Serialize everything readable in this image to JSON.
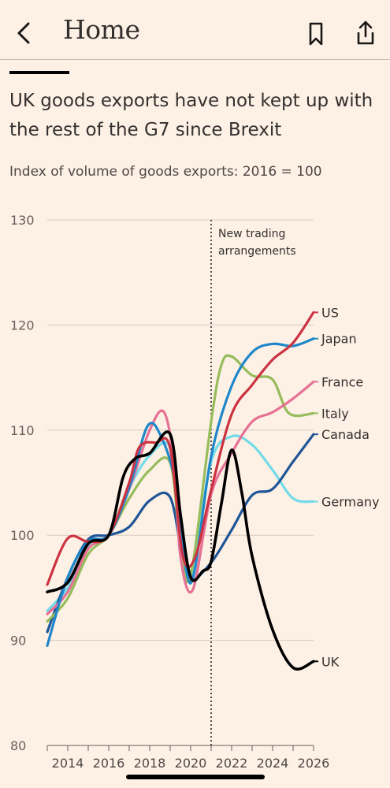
{
  "nav": {
    "back_icon": "chevron-left-icon",
    "title": "Home",
    "bookmark_icon": "bookmark-icon",
    "share_icon": "share-icon"
  },
  "article": {
    "headline": "UK goods exports have not kept up with the rest of the G7 since Brexit",
    "subtitle": "Index of volume of goods exports: 2016 = 100"
  },
  "chart_data": {
    "type": "line",
    "title": "UK goods exports have not kept up with the rest of the G7 since Brexit",
    "subtitle": "Index of volume of goods exports: 2016 = 100",
    "xlabel": "",
    "ylabel": "",
    "xlim": [
      2013,
      2026
    ],
    "ylim": [
      80,
      130
    ],
    "x_ticks": [
      2014,
      2016,
      2018,
      2020,
      2022,
      2024,
      2026
    ],
    "y_ticks": [
      80,
      90,
      100,
      110,
      120,
      130
    ],
    "grid": "horizontal",
    "legend": "direct labels at line ends (right)",
    "annotation": {
      "x": 2021,
      "text_line1": "New trading",
      "text_line2": "arrangements"
    },
    "series": [
      {
        "name": "US",
        "color": "#cc3341",
        "points": [
          [
            2013,
            95.3
          ],
          [
            2014,
            99.7
          ],
          [
            2015,
            99.4
          ],
          [
            2016,
            100
          ],
          [
            2017,
            105
          ],
          [
            2017.5,
            108.4
          ],
          [
            2018.3,
            108.8
          ],
          [
            2019,
            108.3
          ],
          [
            2019.6,
            98.2
          ],
          [
            2020.2,
            97.8
          ],
          [
            2021,
            104.3
          ],
          [
            2022,
            111.5
          ],
          [
            2023,
            114.3
          ],
          [
            2024,
            116.7
          ],
          [
            2025,
            118.3
          ],
          [
            2026,
            121.2
          ]
        ]
      },
      {
        "name": "Japan",
        "color": "#1f87c9",
        "points": [
          [
            2013,
            89.5
          ],
          [
            2014,
            96
          ],
          [
            2015,
            99.4
          ],
          [
            2016,
            100
          ],
          [
            2017,
            104.5
          ],
          [
            2017.9,
            110.4
          ],
          [
            2018.6,
            109.2
          ],
          [
            2019.3,
            104.6
          ],
          [
            2019.8,
            96.5
          ],
          [
            2020.2,
            96.7
          ],
          [
            2021,
            107.5
          ],
          [
            2022,
            114.2
          ],
          [
            2023,
            117.4
          ],
          [
            2024,
            118.2
          ],
          [
            2025,
            118
          ],
          [
            2026,
            118.7
          ]
        ]
      },
      {
        "name": "France",
        "color": "#e57195",
        "points": [
          [
            2013,
            92.5
          ],
          [
            2014,
            94.6
          ],
          [
            2015,
            98.7
          ],
          [
            2016,
            100
          ],
          [
            2017,
            104.4
          ],
          [
            2018,
            110
          ],
          [
            2018.7,
            111.7
          ],
          [
            2019.2,
            106.7
          ],
          [
            2019.5,
            98
          ],
          [
            2020.1,
            94.8
          ],
          [
            2021,
            103.9
          ],
          [
            2022,
            107.8
          ],
          [
            2023,
            110.8
          ],
          [
            2024,
            111.7
          ],
          [
            2025,
            113
          ],
          [
            2026,
            114.6
          ]
        ]
      },
      {
        "name": "Italy",
        "color": "#96bc5c",
        "points": [
          [
            2013,
            91.8
          ],
          [
            2014,
            94
          ],
          [
            2015,
            98.2
          ],
          [
            2016,
            100
          ],
          [
            2017,
            103.5
          ],
          [
            2018,
            106.2
          ],
          [
            2019,
            106.9
          ],
          [
            2019.5,
            99
          ],
          [
            2020,
            96.2
          ],
          [
            2021,
            110.8
          ],
          [
            2021.5,
            116.2
          ],
          [
            2022,
            117
          ],
          [
            2023,
            115.2
          ],
          [
            2024,
            114.8
          ],
          [
            2024.8,
            111.6
          ],
          [
            2026,
            111.6
          ]
        ]
      },
      {
        "name": "Canada",
        "color": "#1f5596",
        "points": [
          [
            2013,
            90.8
          ],
          [
            2014,
            96
          ],
          [
            2015,
            99.6
          ],
          [
            2016,
            100
          ],
          [
            2017,
            100.8
          ],
          [
            2018,
            103.3
          ],
          [
            2019,
            103.6
          ],
          [
            2019.6,
            97.8
          ],
          [
            2020,
            95.7
          ],
          [
            2021,
            97.4
          ],
          [
            2022,
            100.5
          ],
          [
            2023,
            103.8
          ],
          [
            2024,
            104.4
          ],
          [
            2025,
            107
          ],
          [
            2026,
            109.6
          ]
        ]
      },
      {
        "name": "Germany",
        "color": "#73dbe8",
        "points": [
          [
            2013,
            92.8
          ],
          [
            2014,
            95
          ],
          [
            2015,
            98.8
          ],
          [
            2016,
            100
          ],
          [
            2017,
            104.5
          ],
          [
            2018,
            107.6
          ],
          [
            2019,
            108.3
          ],
          [
            2019.5,
            100
          ],
          [
            2020,
            96
          ],
          [
            2021,
            107
          ],
          [
            2022,
            109.4
          ],
          [
            2023,
            108.6
          ],
          [
            2024,
            106.2
          ],
          [
            2025,
            103.5
          ],
          [
            2026,
            103.2
          ]
        ]
      },
      {
        "name": "UK",
        "color": "#000000",
        "points": [
          [
            2013,
            94.6
          ],
          [
            2014,
            95.5
          ],
          [
            2015,
            99.2
          ],
          [
            2016,
            100
          ],
          [
            2016.7,
            105.5
          ],
          [
            2017.3,
            107.3
          ],
          [
            2018,
            107.8
          ],
          [
            2019,
            109.6
          ],
          [
            2019.5,
            102
          ],
          [
            2020,
            96
          ],
          [
            2020.6,
            96.6
          ],
          [
            2021,
            97.5
          ],
          [
            2021.5,
            103
          ],
          [
            2022,
            108.1
          ],
          [
            2022.5,
            104
          ],
          [
            2023,
            98
          ],
          [
            2024,
            91
          ],
          [
            2025,
            87.4
          ],
          [
            2026,
            88
          ]
        ]
      }
    ]
  }
}
